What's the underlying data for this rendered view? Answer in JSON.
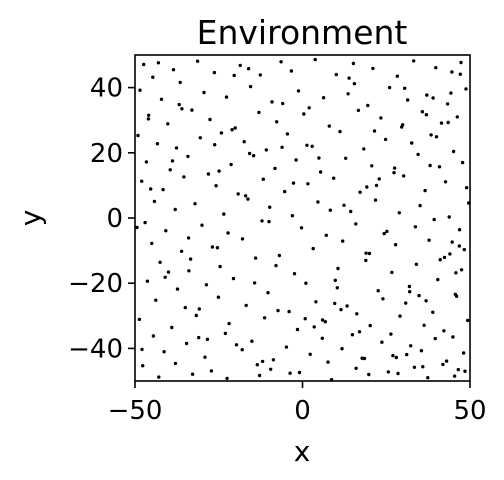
{
  "chart_data": {
    "type": "scatter",
    "title": "Environment",
    "xlabel": "x",
    "ylabel": "y",
    "xlim": [
      -50,
      50
    ],
    "ylim": [
      -50,
      50
    ],
    "xticks": [
      -50,
      0,
      50
    ],
    "xtick_labels": [
      "−50",
      "0",
      "50"
    ],
    "yticks": [
      -40,
      -20,
      0,
      20,
      40
    ],
    "ytick_labels": [
      "−40",
      "−20",
      "0",
      "20",
      "40"
    ],
    "grid": false,
    "marker_color": "#000000",
    "series": [
      {
        "x": [
          -47.4,
          -44.7,
          -38.5,
          -31.3,
          -26.3,
          -18.6,
          -12.6,
          -6.4,
          -3.3,
          3.8,
          10.1,
          15.2,
          21.0,
          28.3,
          33.2,
          39.8,
          44.6,
          47.3,
          -48.5,
          -42.1,
          -36.8,
          -29.4,
          -22.7,
          -15.5,
          -9.1,
          -1.2,
          6.3,
          13.6,
          19.5,
          26.0,
          31.4,
          37.1,
          43.3,
          48.8,
          -45.9,
          -40.2,
          -33.0,
          -27.6,
          -20.1,
          -13.0,
          -7.7,
          0.4,
          8.0,
          16.7,
          23.4,
          29.6,
          35.8,
          41.5,
          46.2,
          -49.1,
          -43.3,
          -37.6,
          -30.5,
          -24.2,
          -17.4,
          -10.8,
          -4.5,
          2.9,
          11.2,
          18.3,
          24.8,
          32.6,
          38.4,
          45.1,
          -46.6,
          -39.5,
          -34.2,
          -28.1,
          -21.3,
          -14.6,
          -8.2,
          -1.9,
          5.4,
          12.9,
          20.7,
          27.3,
          34.5,
          40.9,
          47.8,
          -48.0,
          -41.6,
          -35.4,
          -25.8,
          -19.2,
          -11.7,
          -5.3,
          1.6,
          9.3,
          17.2,
          22.1,
          30.2,
          36.6,
          42.7,
          49.0,
          -44.2,
          -38.0,
          -32.1,
          -23.5,
          -16.3,
          -9.8,
          -3.0,
          4.6,
          14.4,
          21.8,
          28.9,
          35.1,
          43.8,
          -47.0,
          -40.8,
          -30.0,
          -22.2,
          -12.1,
          -0.3,
          7.1,
          15.9,
          25.2,
          33.7,
          39.3,
          46.9,
          -45.0,
          -36.1,
          -26.9,
          -17.9,
          -6.9,
          3.2,
          12.0,
          19.0,
          27.8,
          37.8,
          44.0,
          48.3,
          -42.5,
          -33.9,
          -24.6,
          -14.0,
          -2.4,
          10.6,
          18.9,
          26.7,
          34.0,
          41.1,
          47.5,
          -46.3,
          -37.3,
          -28.7,
          -20.6,
          -10.3,
          1.0,
          9.8,
          22.6,
          31.9,
          40.4,
          45.6,
          -43.8,
          -35.0,
          -25.1,
          -16.8,
          -7.3,
          4.0,
          13.3,
          24.0,
          30.8,
          38.9,
          46.0,
          -48.7,
          -39.0,
          -31.7,
          -21.9,
          -11.3,
          -1.5,
          6.8,
          16.2,
          20.2,
          29.1,
          36.3,
          42.2,
          49.3,
          -44.5,
          -34.6,
          -23.0,
          -15.1,
          -4.8,
          5.9,
          14.9,
          23.7,
          32.3,
          39.6,
          44.9,
          -41.3,
          -29.1,
          -18.0,
          -8.7,
          2.3,
          11.8,
          17.8,
          27.0,
          35.5,
          43.0,
          48.1,
          -47.7,
          -37.9,
          -27.2,
          -13.5,
          -3.7,
          7.6,
          16.0,
          25.6,
          33.4,
          41.9,
          46.5,
          -42.9,
          -32.8,
          -22.5,
          -12.8,
          -0.9,
          8.7,
          19.8,
          28.5,
          37.4,
          45.4,
          -46.0,
          -36.5,
          -26.2,
          -16.1,
          -5.9,
          4.9,
          13.9,
          21.5,
          30.5,
          38.1,
          47.1,
          -40.0,
          -30.8,
          -19.7,
          -9.5,
          0.8,
          10.4,
          18.5,
          26.4,
          34.8,
          42.4,
          48.5,
          -45.3,
          -34.0,
          -24.9,
          -14.3,
          -6.1,
          3.5,
          12.4,
          20.0,
          29.9,
          36.9,
          44.3,
          -49.4,
          -38.8,
          -28.4,
          -17.0,
          -7.9,
          2.0,
          11.5,
          22.9,
          31.1,
          40.0,
          46.8,
          -43.0,
          -33.4,
          -21.0,
          -11.9,
          -2.7,
          6.0,
          15.5,
          24.4,
          32.0,
          39.0,
          45.8,
          -47.9,
          -36.0,
          -25.4,
          -15.8,
          -4.0,
          8.3,
          17.0,
          27.5,
          35.9,
          43.5,
          -41.0,
          -31.0,
          -20.4,
          -10.0,
          1.3,
          9.6,
          19.2,
          28.0,
          37.0,
          44.7,
          49.6
        ],
        "y": [
          47.1,
          43.2,
          45.5,
          48.1,
          44.6,
          46.8,
          43.9,
          47.9,
          45.1,
          48.6,
          44.0,
          47.4,
          45.9,
          43.5,
          48.2,
          46.1,
          44.8,
          47.7,
          39.2,
          36.4,
          34.8,
          38.5,
          37.1,
          40.3,
          35.6,
          39.0,
          36.9,
          38.1,
          34.5,
          40.0,
          36.2,
          37.7,
          35.0,
          39.6,
          31.5,
          28.9,
          33.1,
          30.2,
          27.6,
          32.4,
          29.5,
          31.9,
          28.2,
          33.0,
          30.7,
          27.9,
          32.6,
          29.1,
          31.0,
          25.3,
          22.8,
          21.5,
          24.6,
          26.1,
          23.4,
          20.9,
          25.8,
          22.0,
          26.5,
          21.2,
          24.1,
          23.0,
          25.5,
          20.4,
          17.2,
          14.8,
          18.9,
          13.5,
          16.4,
          19.1,
          15.2,
          17.8,
          14.1,
          18.3,
          16.0,
          13.9,
          19.5,
          15.7,
          17.0,
          11.3,
          8.7,
          12.6,
          9.9,
          7.4,
          11.9,
          8.1,
          10.5,
          12.2,
          7.9,
          10.0,
          12.9,
          8.4,
          11.1,
          9.3,
          5.1,
          2.6,
          4.4,
          1.2,
          5.8,
          3.3,
          0.7,
          4.9,
          2.0,
          5.5,
          1.6,
          3.8,
          0.3,
          -1.4,
          -3.9,
          -2.2,
          -4.6,
          -0.9,
          -3.0,
          -5.3,
          -1.8,
          -4.1,
          -2.7,
          -0.5,
          -3.6,
          -7.8,
          -10.2,
          -8.9,
          -6.4,
          -11.5,
          -9.4,
          -7.1,
          -10.8,
          -8.2,
          -6.8,
          -11.0,
          -9.7,
          -13.6,
          -16.2,
          -14.9,
          -12.3,
          -17.1,
          -15.5,
          -13.0,
          -16.7,
          -14.2,
          -12.8,
          -15.9,
          -19.4,
          -21.8,
          -20.5,
          -18.6,
          -22.9,
          -20.0,
          -19.1,
          -22.3,
          -21.0,
          -18.9,
          -23.4,
          -25.2,
          -27.5,
          -24.3,
          -26.8,
          -28.4,
          -25.7,
          -27.0,
          -24.8,
          -26.1,
          -28.9,
          -24.0,
          -31.1,
          -33.6,
          -29.9,
          -32.4,
          -30.6,
          -34.2,
          -31.8,
          -29.4,
          -33.0,
          -30.1,
          -32.9,
          -34.6,
          -31.4,
          -36.2,
          -38.5,
          -35.4,
          -37.8,
          -39.6,
          -36.9,
          -35.8,
          -38.1,
          -39.2,
          -37.0,
          -36.5,
          -41.0,
          -42.7,
          -40.4,
          -43.5,
          -41.8,
          -40.1,
          -43.0,
          -42.2,
          -40.7,
          -43.9,
          -41.4,
          -45.3,
          -44.6,
          -46.9,
          -45.0,
          -47.6,
          -44.2,
          -46.1,
          -47.2,
          -45.8,
          -44.9,
          -46.5,
          -48.8,
          -47.9,
          -49.2,
          -48.3,
          -47.4,
          -49.6,
          -48.0,
          -47.7,
          -49.0,
          -48.5,
          30.4,
          41.6,
          22.5,
          45.8,
          35.1,
          18.4,
          42.9,
          26.7,
          39.8,
          16.1,
          44.1,
          -16.6,
          -27.9,
          -38.9,
          -46.4,
          -30.9,
          -21.4,
          -43.1,
          -35.6,
          -23.8,
          -12.1,
          -47.0,
          8.9,
          -6.1,
          14.4,
          -19.9,
          21.7,
          -33.4,
          3.9,
          -10.9,
          28.6,
          -25.4,
          38.3,
          -2.9,
          17.5,
          -37.2,
          6.8,
          -14.6,
          33.8,
          -28.1,
          12.0,
          -41.9,
          24.9,
          -8.6,
          47.6,
          -12.6,
          27.1,
          -44.0,
          10.7,
          -31.3,
          41.2,
          -4.8,
          -22.6,
          36.8,
          -16.8,
          -40.3,
          33.5,
          -9.1,
          19.8,
          -28.7,
          2.4,
          -34.9,
          15.3,
          -45.6,
          29.3,
          -18.2,
          -36.7,
          43.7,
          -1.1,
          22.3,
          -26.2,
          9.5,
          -42.8,
          31.7,
          -7.4,
          4.6
        ]
      }
    ]
  }
}
